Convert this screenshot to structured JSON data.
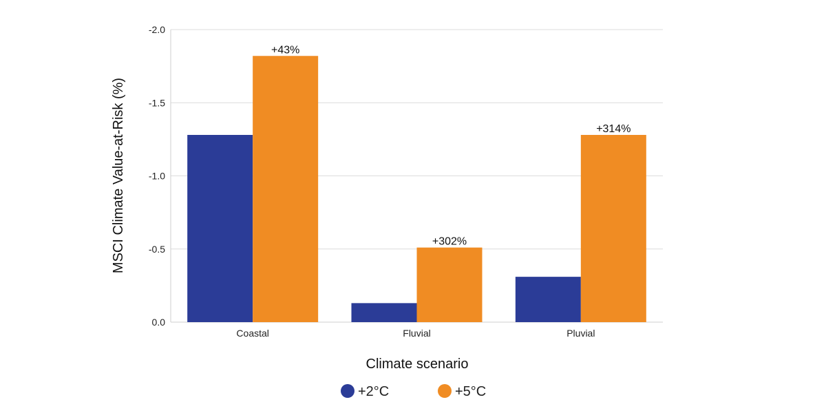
{
  "chart_data": {
    "type": "bar",
    "xlabel": "Climate scenario",
    "ylabel": "MSCI Climate Value-at-Risk (%)",
    "categories": [
      "Coastal",
      "Fluvial",
      "Pluvial"
    ],
    "ylim": [
      0,
      -2.0
    ],
    "yticks": [
      0,
      -0.5,
      -1.0,
      -1.5,
      -2.0
    ],
    "ytick_labels": [
      "0.0",
      "-0.5",
      "-1.0",
      "-1.5",
      "-2.0"
    ],
    "grid": "horizontal",
    "legend_position": "bottom-center",
    "series": [
      {
        "name": "+2°C",
        "color": "#2b3c97",
        "values": [
          -1.28,
          -0.13,
          -0.31
        ]
      },
      {
        "name": "+5°C",
        "color": "#f08c23",
        "values": [
          -1.82,
          -0.51,
          -1.28
        ],
        "data_labels": [
          "+43%",
          "+302%",
          "+314%"
        ]
      }
    ]
  }
}
